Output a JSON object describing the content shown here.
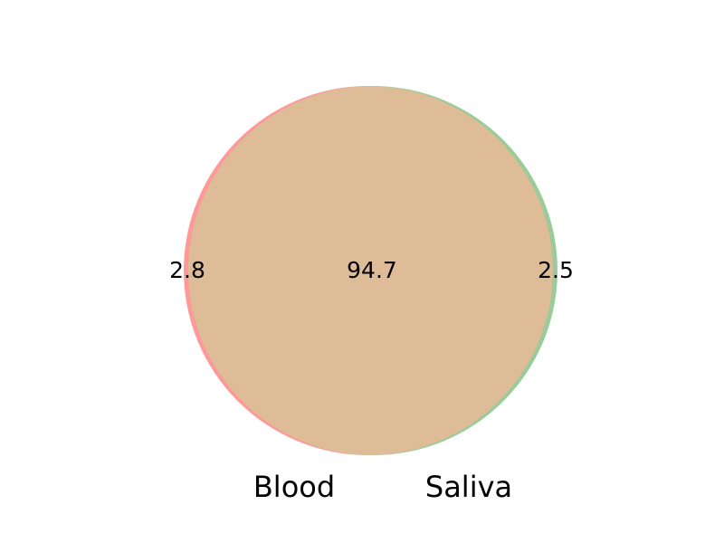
{
  "venn": {
    "sets": [
      {
        "name": "Blood",
        "color": "#ff9999",
        "only_value": "2.8"
      },
      {
        "name": "Saliva",
        "color": "#99cc99",
        "only_value": "2.5"
      }
    ],
    "intersection": {
      "value": "94.7",
      "color": "#dfbc98"
    }
  }
}
